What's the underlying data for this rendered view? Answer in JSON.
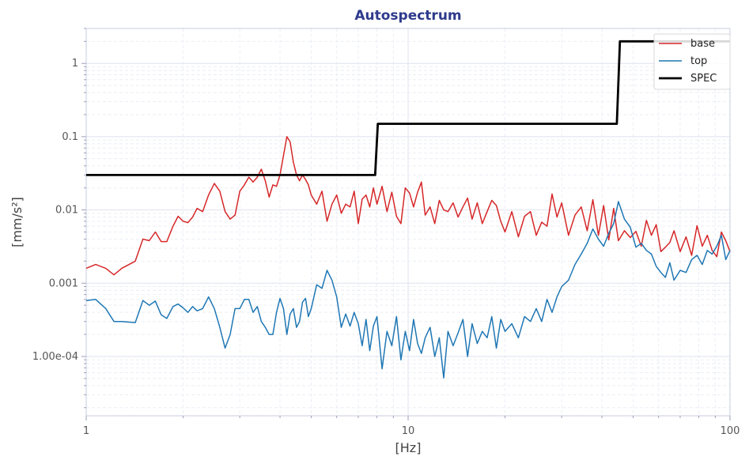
{
  "chart_data": {
    "type": "line",
    "title": "Autospectrum",
    "xlabel": "[Hz]",
    "ylabel": "[mm/s²]",
    "xscale": "log",
    "yscale": "log",
    "xlim": [
      1,
      100
    ],
    "ylim": [
      1.55e-05,
      3
    ],
    "grid": true,
    "legend_position": "top-right",
    "x_ticks": [
      {
        "value": 1,
        "label": "1"
      },
      {
        "value": 10,
        "label": "10"
      },
      {
        "value": 100,
        "label": "100"
      }
    ],
    "y_ticks": [
      {
        "value": 0.0001,
        "label": "1.00e-04"
      },
      {
        "value": 0.001,
        "label": "0.001"
      },
      {
        "value": 0.01,
        "label": "0.01"
      },
      {
        "value": 0.1,
        "label": "0.1"
      },
      {
        "value": 1,
        "label": "1"
      }
    ],
    "series": [
      {
        "name": "base",
        "color": "#d62728",
        "x": [
          1.0,
          1.07,
          1.15,
          1.22,
          1.29,
          1.42,
          1.5,
          1.57,
          1.64,
          1.71,
          1.78,
          1.86,
          1.93,
          2.0,
          2.07,
          2.14,
          2.21,
          2.3,
          2.4,
          2.5,
          2.6,
          2.7,
          2.8,
          2.9,
          3.0,
          3.1,
          3.2,
          3.3,
          3.4,
          3.5,
          3.6,
          3.7,
          3.8,
          3.9,
          4.0,
          4.1,
          4.2,
          4.3,
          4.4,
          4.5,
          4.6,
          4.7,
          4.8,
          4.9,
          5.0,
          5.2,
          5.4,
          5.6,
          5.8,
          6.0,
          6.2,
          6.4,
          6.6,
          6.8,
          7.0,
          7.2,
          7.4,
          7.6,
          7.8,
          8.0,
          8.3,
          8.6,
          8.9,
          9.2,
          9.5,
          9.8,
          10.1,
          10.4,
          10.7,
          11.0,
          11.3,
          11.7,
          12.1,
          12.5,
          12.9,
          13.3,
          13.8,
          14.3,
          14.8,
          15.3,
          15.8,
          16.4,
          17.0,
          17.6,
          18.2,
          18.8,
          19.4,
          20.0,
          21.0,
          22.0,
          23.0,
          24.0,
          25.0,
          26.0,
          27.0,
          28.0,
          29.0,
          30.0,
          31.5,
          33.0,
          34.5,
          36.0,
          37.5,
          39.0,
          40.5,
          42.0,
          43.5,
          45.0,
          47.0,
          49.0,
          51.0,
          53.0,
          55.0,
          57.0,
          59.0,
          61.0,
          63.0,
          65.0,
          67.0,
          70.0,
          73.0,
          76.0,
          79.0,
          82.0,
          85.0,
          88.0,
          91.0,
          94.0,
          97.0,
          100.0
        ],
        "values": [
          0.0016,
          0.0018,
          0.0016,
          0.0013,
          0.0016,
          0.002,
          0.004,
          0.0038,
          0.005,
          0.0037,
          0.0037,
          0.006,
          0.0082,
          0.007,
          0.0067,
          0.008,
          0.0105,
          0.0095,
          0.016,
          0.023,
          0.018,
          0.0095,
          0.0075,
          0.0085,
          0.018,
          0.022,
          0.028,
          0.024,
          0.028,
          0.036,
          0.025,
          0.015,
          0.022,
          0.021,
          0.03,
          0.055,
          0.1,
          0.085,
          0.045,
          0.03,
          0.025,
          0.03,
          0.026,
          0.022,
          0.016,
          0.012,
          0.018,
          0.007,
          0.012,
          0.016,
          0.009,
          0.012,
          0.011,
          0.018,
          0.0065,
          0.014,
          0.016,
          0.011,
          0.02,
          0.012,
          0.021,
          0.0095,
          0.0175,
          0.0082,
          0.0065,
          0.02,
          0.017,
          0.011,
          0.0175,
          0.024,
          0.0085,
          0.011,
          0.0065,
          0.0135,
          0.01,
          0.0095,
          0.0125,
          0.008,
          0.011,
          0.0145,
          0.0075,
          0.0125,
          0.0065,
          0.0095,
          0.0135,
          0.0115,
          0.007,
          0.005,
          0.0095,
          0.0043,
          0.0082,
          0.0095,
          0.0045,
          0.0068,
          0.006,
          0.0165,
          0.008,
          0.0125,
          0.0045,
          0.0085,
          0.011,
          0.0052,
          0.0138,
          0.0045,
          0.0115,
          0.0039,
          0.0105,
          0.0038,
          0.0052,
          0.0042,
          0.0051,
          0.0032,
          0.0072,
          0.0045,
          0.0063,
          0.0027,
          0.0031,
          0.0036,
          0.0052,
          0.0027,
          0.0043,
          0.0024,
          0.0061,
          0.0032,
          0.0045,
          0.0028,
          0.0023,
          0.005,
          0.0038,
          0.0027
        ],
        "line_width": 1.5
      },
      {
        "name": "top",
        "color": "#1f77b4",
        "x": [
          1.0,
          1.07,
          1.15,
          1.22,
          1.29,
          1.42,
          1.5,
          1.57,
          1.64,
          1.71,
          1.78,
          1.86,
          1.93,
          2.0,
          2.07,
          2.14,
          2.21,
          2.3,
          2.4,
          2.5,
          2.6,
          2.7,
          2.8,
          2.9,
          3.0,
          3.1,
          3.2,
          3.3,
          3.4,
          3.5,
          3.6,
          3.7,
          3.8,
          3.9,
          4.0,
          4.1,
          4.2,
          4.3,
          4.4,
          4.5,
          4.6,
          4.7,
          4.8,
          4.9,
          5.0,
          5.2,
          5.4,
          5.6,
          5.8,
          6.0,
          6.2,
          6.4,
          6.6,
          6.8,
          7.0,
          7.2,
          7.4,
          7.6,
          7.8,
          8.0,
          8.3,
          8.6,
          8.9,
          9.2,
          9.5,
          9.8,
          10.1,
          10.4,
          10.7,
          11.0,
          11.3,
          11.7,
          12.1,
          12.5,
          12.9,
          13.3,
          13.8,
          14.3,
          14.8,
          15.3,
          15.8,
          16.4,
          17.0,
          17.6,
          18.2,
          18.8,
          19.4,
          20.0,
          21.0,
          22.0,
          23.0,
          24.0,
          25.0,
          26.0,
          27.0,
          28.0,
          29.0,
          30.0,
          31.5,
          33.0,
          34.5,
          36.0,
          37.5,
          39.0,
          40.5,
          42.0,
          43.5,
          45.0,
          47.0,
          49.0,
          51.0,
          53.0,
          55.0,
          57.0,
          59.0,
          61.0,
          63.0,
          65.0,
          67.0,
          70.0,
          73.0,
          76.0,
          79.0,
          82.0,
          85.0,
          88.0,
          91.0,
          94.0,
          97.0,
          100.0
        ],
        "values": [
          0.00058,
          0.0006,
          0.00045,
          0.0003,
          0.0003,
          0.00029,
          0.00058,
          0.0005,
          0.00057,
          0.00037,
          0.00033,
          0.00048,
          0.00052,
          0.00046,
          0.0004,
          0.00048,
          0.00042,
          0.00045,
          0.00065,
          0.00045,
          0.00025,
          0.00013,
          0.0002,
          0.00045,
          0.00045,
          0.0006,
          0.0006,
          0.0004,
          0.00048,
          0.0003,
          0.00025,
          0.0002,
          0.0002,
          0.0004,
          0.00062,
          0.00045,
          0.0002,
          0.00038,
          0.00045,
          0.00025,
          0.0003,
          0.00055,
          0.00062,
          0.00035,
          0.00045,
          0.00095,
          0.00085,
          0.0015,
          0.0011,
          0.00065,
          0.00025,
          0.00038,
          0.00026,
          0.0004,
          0.00028,
          0.00014,
          0.00032,
          0.00012,
          0.00026,
          0.00035,
          6.8e-05,
          0.00022,
          0.00014,
          0.00035,
          9e-05,
          0.00022,
          0.00012,
          0.00032,
          0.00015,
          0.00011,
          0.00018,
          0.00025,
          0.0001,
          0.00018,
          5.1e-05,
          0.00022,
          0.00014,
          0.00021,
          0.00032,
          0.0001,
          0.00028,
          0.00015,
          0.00022,
          0.00018,
          0.00035,
          0.00013,
          0.00032,
          0.00022,
          0.00028,
          0.00018,
          0.00035,
          0.0003,
          0.00045,
          0.0003,
          0.0006,
          0.0004,
          0.00065,
          0.0009,
          0.0011,
          0.0018,
          0.0025,
          0.0035,
          0.0055,
          0.004,
          0.0032,
          0.0048,
          0.0065,
          0.013,
          0.0075,
          0.0058,
          0.0031,
          0.0035,
          0.0028,
          0.0025,
          0.0017,
          0.0014,
          0.0012,
          0.0019,
          0.0011,
          0.0015,
          0.0014,
          0.0021,
          0.0024,
          0.0018,
          0.0028,
          0.0025,
          0.0032,
          0.0045,
          0.0021,
          0.0028
        ],
        "line_width": 1.5
      },
      {
        "name": "SPEC",
        "color": "#000000",
        "x": [
          1.0,
          7.9,
          8.05,
          44.5,
          45.5,
          100.0
        ],
        "values": [
          0.03,
          0.03,
          0.15,
          0.15,
          2.0,
          2.0
        ],
        "line_width": 2.8
      }
    ]
  }
}
